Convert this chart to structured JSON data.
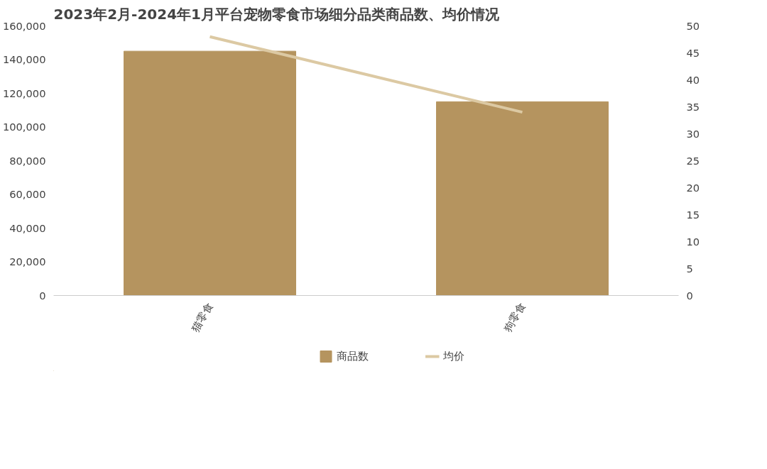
{
  "chart_data": {
    "type": "bar",
    "title": "2023年2月-2024年1月平台宠物零食市场细分品类商品数、均价情况",
    "categories": [
      "猫零食",
      "狗零食"
    ],
    "series": [
      {
        "name": "商品数",
        "color": "#b5945f",
        "values": [
          145000,
          115000
        ]
      },
      {
        "name": "均价",
        "type": "line",
        "axis": "y2",
        "color": "#dcc9a3",
        "values": [
          48,
          34
        ]
      }
    ],
    "ylim": [
      0,
      160000
    ],
    "yticks": [
      0,
      {
        "value": 20000,
        "label": "20,000"
      },
      {
        "value": 40000,
        "label": "40,000"
      },
      {
        "value": 60000,
        "label": "60,000"
      },
      {
        "value": 80000,
        "label": "80,000"
      },
      {
        "value": 100000,
        "label": "100,000"
      },
      {
        "value": 120000,
        "label": "120,000"
      },
      {
        "value": 140000,
        "label": "140,000"
      },
      {
        "value": 160000,
        "label": "160,000"
      }
    ],
    "y2lim": [
      0,
      50
    ],
    "y2ticks": [
      0,
      5,
      10,
      15,
      20,
      25,
      30,
      35,
      40,
      45,
      50
    ],
    "grid": false,
    "legend": "bottom"
  }
}
